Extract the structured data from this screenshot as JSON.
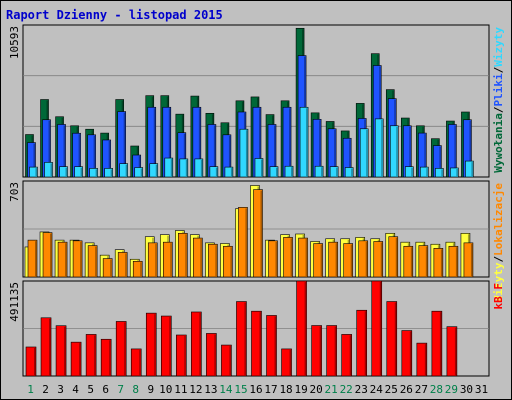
{
  "chart_data": {
    "type": "bar",
    "title": "Raport Dzienny -  listopad 2015",
    "categories": [
      "1",
      "2",
      "3",
      "4",
      "5",
      "6",
      "7",
      "8",
      "9",
      "10",
      "11",
      "12",
      "13",
      "14",
      "15",
      "16",
      "17",
      "18",
      "19",
      "20",
      "21",
      "22",
      "23",
      "24",
      "25",
      "26",
      "27",
      "28",
      "29",
      "30",
      "31"
    ],
    "weekend_days": [
      "1",
      "7",
      "8",
      "14",
      "15",
      "21",
      "22",
      "28",
      "29"
    ],
    "panels": [
      {
        "id": "top",
        "ymax_label": "10593",
        "ylim": [
          0,
          10593
        ],
        "right_label_parts": [
          "Wywołania",
          "/",
          "Pliki",
          "/",
          "Wizyty"
        ],
        "series": [
          {
            "name": "Wywołania",
            "color": "#006838",
            "values": [
              2960,
              5400,
              4200,
              3570,
              3330,
              3060,
              5400,
              2160,
              5670,
              5670,
              4380,
              5640,
              4440,
              3780,
              5310,
              5580,
              4350,
              5310,
              10365,
              4470,
              3870,
              3210,
              5130,
              8595,
              6090,
              4110,
              3570,
              2670,
              3900,
              4530,
              0
            ]
          },
          {
            "name": "Pliki",
            "color": "#1f54ff",
            "values": [
              2400,
              3990,
              3660,
              3050,
              2940,
              2580,
              4560,
              1530,
              4860,
              4860,
              3090,
              4860,
              3660,
              2940,
              4530,
              4860,
              3660,
              4860,
              8460,
              4020,
              3360,
              2700,
              4080,
              7770,
              5460,
              3570,
              3060,
              2190,
              3660,
              3990,
              0
            ]
          },
          {
            "name": "Wizyty",
            "color": "#30d8ff",
            "values": [
              690,
              1020,
              720,
              720,
              600,
              600,
              930,
              660,
              930,
              1320,
              1260,
              1260,
              720,
              690,
              3330,
              1290,
              720,
              750,
              4860,
              750,
              720,
              660,
              3360,
              4050,
              3570,
              720,
              690,
              600,
              630,
              1110,
              0
            ]
          }
        ]
      },
      {
        "id": "mid",
        "ymax_label": "703",
        "ylim": [
          0,
          703
        ],
        "right_label_parts": [
          "Wizyty",
          "/",
          "Lokalizacje"
        ],
        "series": [
          {
            "name": "Wizyty",
            "color": "#ffff40",
            "values": [
              220,
              330,
              270,
              270,
              250,
              160,
              200,
              130,
              295,
              310,
              340,
              310,
              250,
              245,
              500,
              670,
              270,
              310,
              315,
              260,
              280,
              280,
              290,
              280,
              320,
              255,
              255,
              240,
              255,
              320,
              0
            ]
          },
          {
            "name": "Lokalizacje",
            "color": "#ff8800",
            "values": [
              270,
              325,
              255,
              265,
              230,
              135,
              180,
              115,
              250,
              255,
              320,
              285,
              240,
              225,
              510,
              640,
              265,
              290,
              285,
              245,
              255,
              245,
              265,
              260,
              295,
              225,
              230,
              210,
              225,
              250,
              0
            ]
          }
        ]
      },
      {
        "id": "bot",
        "ymax_label": "491135",
        "ylim": [
          0,
          491135
        ],
        "right_label_parts": [
          "kB F"
        ],
        "series": [
          {
            "name": "kB F",
            "color": "#ff0000",
            "values": [
              150000,
              301000,
              260000,
              175000,
              215000,
              190000,
              282000,
              140000,
              325000,
              310000,
              212000,
              331000,
              220000,
              160000,
              385000,
              335000,
              313000,
              140000,
              491135,
              261000,
              261000,
              215000,
              340000,
              491135,
              385000,
              235000,
              170000,
              335000,
              255000,
              0,
              0
            ]
          }
        ]
      }
    ]
  }
}
